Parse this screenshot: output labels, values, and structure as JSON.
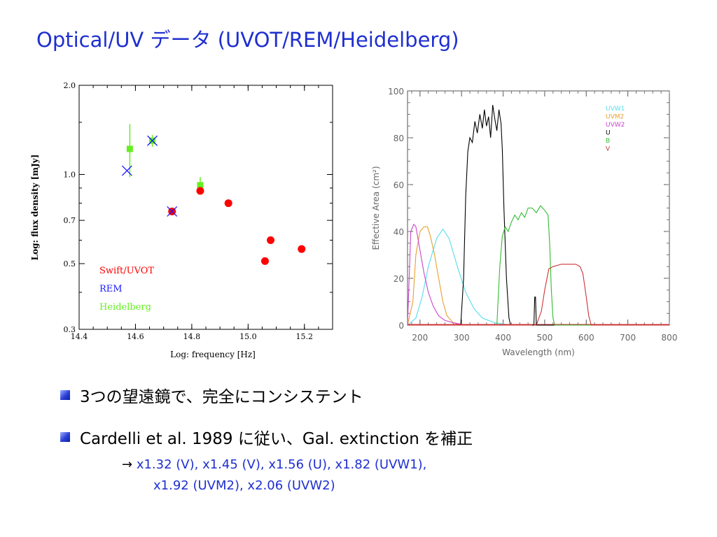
{
  "slide": {
    "title": "Optical/UV データ (UVOT/REM/Heidelberg)",
    "bullets": [
      "3つの望遠鏡で、完全にコンシステント",
      "Cardelli et al. 1989 に従い、Gal.  extinction を補正"
    ],
    "note_arrow": "→",
    "note_line1": "x1.32 (V), x1.45 (V), x1.56 (U), x1.82 (UVW1),",
    "note_line2": "x1.92 (UVM2), x2.06 (UVW2)"
  },
  "chart_data": [
    {
      "type": "scatter",
      "xlabel": "Log: frequency [Hz]",
      "ylabel": "Log: flux density [mJy]",
      "xlim": [
        14.4,
        15.3
      ],
      "ylim": [
        0.3,
        2.0
      ],
      "yscale": "log",
      "xticks": [
        "14.4",
        "14.6",
        "14.8",
        "15.0",
        "15.2"
      ],
      "yticks": [
        "2.0",
        "1.0",
        "0.7",
        "0.5",
        "0.3"
      ],
      "legend_position": "bottom-left",
      "series": [
        {
          "name": "Swift/UVOT",
          "color": "#ff0000",
          "marker": "circle",
          "points": [
            {
              "x": 14.73,
              "y": 0.75
            },
            {
              "x": 14.83,
              "y": 0.88
            },
            {
              "x": 14.93,
              "y": 0.8
            },
            {
              "x": 15.06,
              "y": 0.51
            },
            {
              "x": 15.08,
              "y": 0.6
            },
            {
              "x": 15.19,
              "y": 0.56
            }
          ]
        },
        {
          "name": "REM",
          "color": "#1a1aff",
          "marker": "x",
          "points": [
            {
              "x": 14.57,
              "y": 1.03
            },
            {
              "x": 14.66,
              "y": 1.3
            },
            {
              "x": 14.73,
              "y": 0.75
            }
          ]
        },
        {
          "name": "Heidelberg",
          "color": "#66ee22",
          "marker": "square",
          "points": [
            {
              "x": 14.58,
              "y": 1.22,
              "ylo": 0.98,
              "yhi": 1.48
            },
            {
              "x": 14.66,
              "y": 1.3,
              "ylo": 1.24,
              "yhi": 1.36
            },
            {
              "x": 14.83,
              "y": 0.92,
              "ylo": 0.87,
              "yhi": 0.98
            }
          ]
        }
      ]
    },
    {
      "type": "line",
      "xlabel": "Wavelength (nm)",
      "ylabel": "Effective Area (cm²)",
      "xlim": [
        170,
        800
      ],
      "ylim": [
        0,
        100
      ],
      "xticks": [
        "200",
        "300",
        "400",
        "500",
        "600",
        "700",
        "800"
      ],
      "yticks": [
        "0",
        "20",
        "40",
        "60",
        "80",
        "100"
      ],
      "legend_position": "top-right",
      "series": [
        {
          "name": "UVW1",
          "color": "#55ddee",
          "x": [
            170,
            190,
            205,
            220,
            240,
            255,
            270,
            290,
            310,
            330,
            350,
            380,
            420,
            460,
            520,
            600,
            800
          ],
          "y": [
            0,
            3,
            12,
            25,
            37,
            41,
            37,
            25,
            14,
            7,
            3,
            1,
            0,
            0,
            0,
            0,
            0
          ]
        },
        {
          "name": "UVM2",
          "color": "#e8a030",
          "x": [
            170,
            183,
            190,
            200,
            210,
            218,
            225,
            235,
            245,
            255,
            265,
            280,
            300,
            330,
            800
          ],
          "y": [
            0,
            10,
            30,
            40,
            42,
            42,
            38,
            30,
            20,
            10,
            4,
            1,
            0,
            0,
            0
          ]
        },
        {
          "name": "UVW2",
          "color": "#cc44cc",
          "x": [
            170,
            178,
            185,
            190,
            200,
            210,
            220,
            232,
            245,
            260,
            280,
            310,
            800
          ],
          "y": [
            0,
            40,
            43,
            42,
            32,
            22,
            14,
            8,
            4,
            2,
            1,
            0,
            0
          ]
        },
        {
          "name": "U",
          "color": "#000000",
          "x": [
            170,
            298,
            305,
            310,
            315,
            320,
            326,
            332,
            338,
            344,
            350,
            355,
            360,
            365,
            370,
            375,
            380,
            385,
            390,
            395,
            398,
            402,
            408,
            414,
            418,
            800
          ],
          "y": [
            0,
            0,
            20,
            55,
            74,
            80,
            78,
            87,
            82,
            90,
            84,
            92,
            85,
            89,
            80,
            94,
            88,
            83,
            92,
            86,
            75,
            50,
            20,
            3,
            0,
            0
          ]
        },
        {
          "name": "B",
          "color": "#33bb33",
          "x": [
            170,
            385,
            392,
            398,
            405,
            412,
            420,
            428,
            436,
            444,
            452,
            460,
            470,
            480,
            490,
            500,
            508,
            512,
            516,
            520,
            524,
            800
          ],
          "y": [
            0,
            0,
            25,
            38,
            42,
            40,
            44,
            47,
            45,
            48,
            46,
            50,
            50,
            48,
            51,
            49,
            47,
            35,
            15,
            3,
            0,
            0
          ]
        },
        {
          "name": "V",
          "color": "#cc3333",
          "x": [
            170,
            480,
            492,
            500,
            510,
            520,
            540,
            560,
            575,
            585,
            592,
            600,
            606,
            612,
            800
          ],
          "y": [
            0,
            0,
            6,
            15,
            24,
            25,
            26,
            26,
            26,
            25,
            22,
            12,
            4,
            0,
            0
          ]
        },
        {
          "name": "",
          "color": "#000000",
          "x": [
            470,
            474,
            476,
            478,
            480,
            482,
            490
          ],
          "y": [
            0,
            0,
            12,
            12,
            0,
            0,
            0
          ]
        }
      ]
    }
  ]
}
